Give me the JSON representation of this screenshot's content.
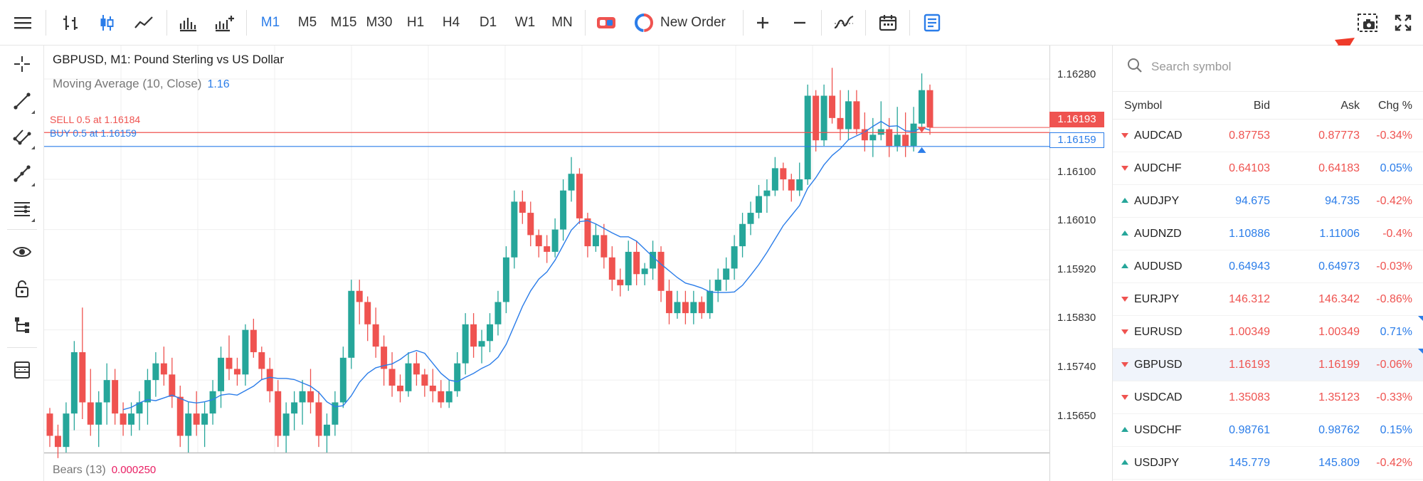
{
  "toolbar": {
    "timeframes": [
      "M1",
      "M5",
      "M15",
      "M30",
      "H1",
      "H4",
      "D1",
      "W1",
      "MN"
    ],
    "active_timeframe": "M1",
    "new_order_label": "New Order",
    "icons": [
      "menu-icon",
      "bar-chart-icon",
      "candlestick-icon",
      "line-chart-icon",
      "volume-icon",
      "indicators-icon",
      "one-click-icon",
      "new-order-icon",
      "zoom-in-icon",
      "zoom-out-icon",
      "indicator-wave-icon",
      "calendar-icon",
      "notes-icon",
      "screenshot-icon",
      "fullscreen-icon"
    ],
    "accent_color": "#2b7de9"
  },
  "left_tools": [
    "crosshair-icon",
    "trend-line-icon",
    "channel-icon",
    "fibonacci-icon",
    "horizontal-lines-icon",
    "eye-icon",
    "lock-icon",
    "objects-tree-icon",
    "templates-icon"
  ],
  "chart": {
    "title": "GBPUSD, M1: Pound Sterling vs US Dollar",
    "indicator": {
      "name": "Moving Average (10, Close)",
      "value": "1.16"
    },
    "sell_line": "SELL 0.5 at 1.16184",
    "buy_line": "BUY 0.5 at 1.16159",
    "subwindow": {
      "name": "Bears (13)",
      "value": "0.000250"
    },
    "price_labels": [
      "1.16280",
      "1.16100",
      "1.16010",
      "1.15920",
      "1.15830",
      "1.15740",
      "1.15650"
    ],
    "current_sell_tag": "1.16193",
    "buy_tag": "1.16159",
    "up_color": "#26a69a",
    "down_color": "#ef5350",
    "ma_color": "#2b7de9"
  },
  "chart_data": {
    "type": "candlestick",
    "title": "GBPUSD, M1: Pound Sterling vs US Dollar",
    "ylim": [
      1.1561,
      1.1634
    ],
    "candles": [
      [
        1.1568,
        1.1569,
        1.1562,
        1.1564
      ],
      [
        1.1564,
        1.1566,
        1.156,
        1.1562
      ],
      [
        1.1562,
        1.157,
        1.1561,
        1.1568
      ],
      [
        1.1568,
        1.1581,
        1.1565,
        1.1579
      ],
      [
        1.1579,
        1.1587,
        1.1567,
        1.157
      ],
      [
        1.157,
        1.1576,
        1.1564,
        1.1566
      ],
      [
        1.1566,
        1.1572,
        1.1562,
        1.157
      ],
      [
        1.157,
        1.1577,
        1.1566,
        1.1574
      ],
      [
        1.1574,
        1.1576,
        1.1566,
        1.1568
      ],
      [
        1.1568,
        1.157,
        1.1564,
        1.1566
      ],
      [
        1.1566,
        1.157,
        1.1564,
        1.1568
      ],
      [
        1.1568,
        1.1572,
        1.1565,
        1.157
      ],
      [
        1.157,
        1.1576,
        1.1566,
        1.1574
      ],
      [
        1.1574,
        1.1579,
        1.1571,
        1.1577
      ],
      [
        1.1577,
        1.158,
        1.1573,
        1.1575
      ],
      [
        1.1575,
        1.1578,
        1.1569,
        1.1571
      ],
      [
        1.1571,
        1.1573,
        1.1562,
        1.1564
      ],
      [
        1.1564,
        1.157,
        1.1561,
        1.1568
      ],
      [
        1.1568,
        1.1572,
        1.1564,
        1.1566
      ],
      [
        1.1566,
        1.157,
        1.1562,
        1.1568
      ],
      [
        1.1568,
        1.1574,
        1.1566,
        1.1572
      ],
      [
        1.1572,
        1.158,
        1.1569,
        1.1578
      ],
      [
        1.1578,
        1.1582,
        1.1574,
        1.1576
      ],
      [
        1.1576,
        1.1578,
        1.1573,
        1.1575
      ],
      [
        1.1575,
        1.1584,
        1.1573,
        1.1583
      ],
      [
        1.1583,
        1.1585,
        1.1578,
        1.1579
      ],
      [
        1.1579,
        1.158,
        1.1574,
        1.1576
      ],
      [
        1.1576,
        1.1578,
        1.157,
        1.1572
      ],
      [
        1.1572,
        1.1574,
        1.1562,
        1.1564
      ],
      [
        1.1564,
        1.157,
        1.1561,
        1.1568
      ],
      [
        1.1568,
        1.1572,
        1.1565,
        1.157
      ],
      [
        1.157,
        1.1574,
        1.1566,
        1.1572
      ],
      [
        1.1572,
        1.1576,
        1.1568,
        1.157
      ],
      [
        1.157,
        1.1572,
        1.1562,
        1.1564
      ],
      [
        1.1564,
        1.1568,
        1.1561,
        1.1566
      ],
      [
        1.1566,
        1.1572,
        1.1564,
        1.157
      ],
      [
        1.157,
        1.158,
        1.1569,
        1.1578
      ],
      [
        1.1578,
        1.1592,
        1.1576,
        1.159
      ],
      [
        1.159,
        1.1592,
        1.1584,
        1.1588
      ],
      [
        1.1588,
        1.1589,
        1.1581,
        1.1584
      ],
      [
        1.1584,
        1.1587,
        1.1578,
        1.158
      ],
      [
        1.158,
        1.1582,
        1.1573,
        1.1576
      ],
      [
        1.1576,
        1.1579,
        1.1571,
        1.1573
      ],
      [
        1.1573,
        1.1575,
        1.157,
        1.1572
      ],
      [
        1.1572,
        1.1579,
        1.1571,
        1.1577
      ],
      [
        1.1577,
        1.1579,
        1.1573,
        1.1575
      ],
      [
        1.1575,
        1.1576,
        1.1571,
        1.1573
      ],
      [
        1.1573,
        1.1576,
        1.157,
        1.1572
      ],
      [
        1.1572,
        1.1574,
        1.1569,
        1.157
      ],
      [
        1.157,
        1.1574,
        1.1569,
        1.1572
      ],
      [
        1.1572,
        1.1579,
        1.1571,
        1.1577
      ],
      [
        1.1577,
        1.1586,
        1.1575,
        1.1584
      ],
      [
        1.1584,
        1.1586,
        1.1578,
        1.158
      ],
      [
        1.158,
        1.1583,
        1.1577,
        1.1581
      ],
      [
        1.1581,
        1.1586,
        1.1579,
        1.1584
      ],
      [
        1.1584,
        1.159,
        1.1582,
        1.1588
      ],
      [
        1.1588,
        1.1598,
        1.1586,
        1.1596
      ],
      [
        1.1596,
        1.1608,
        1.1594,
        1.1606
      ],
      [
        1.1606,
        1.1608,
        1.1602,
        1.1604
      ],
      [
        1.1604,
        1.1606,
        1.1598,
        1.16
      ],
      [
        1.16,
        1.1601,
        1.1596,
        1.1598
      ],
      [
        1.1598,
        1.16,
        1.1595,
        1.1597
      ],
      [
        1.1597,
        1.1603,
        1.1596,
        1.1601
      ],
      [
        1.1601,
        1.161,
        1.1599,
        1.1608
      ],
      [
        1.1608,
        1.1614,
        1.1606,
        1.1611
      ],
      [
        1.1611,
        1.1612,
        1.1602,
        1.1603
      ],
      [
        1.1603,
        1.1604,
        1.1596,
        1.1598
      ],
      [
        1.1598,
        1.1602,
        1.1597,
        1.16
      ],
      [
        1.16,
        1.1602,
        1.1594,
        1.1596
      ],
      [
        1.1596,
        1.1598,
        1.159,
        1.1592
      ],
      [
        1.1592,
        1.1594,
        1.1589,
        1.1591
      ],
      [
        1.1591,
        1.1599,
        1.159,
        1.1597
      ],
      [
        1.1597,
        1.1599,
        1.1591,
        1.1593
      ],
      [
        1.1593,
        1.1595,
        1.1591,
        1.1594
      ],
      [
        1.1594,
        1.1599,
        1.1592,
        1.1597
      ],
      [
        1.1597,
        1.1598,
        1.1588,
        1.159
      ],
      [
        1.159,
        1.1592,
        1.1584,
        1.1586
      ],
      [
        1.1586,
        1.159,
        1.1585,
        1.1588
      ],
      [
        1.1588,
        1.159,
        1.1584,
        1.1586
      ],
      [
        1.1586,
        1.159,
        1.1584,
        1.1588
      ],
      [
        1.1588,
        1.1589,
        1.1585,
        1.1586
      ],
      [
        1.1586,
        1.1592,
        1.1585,
        1.159
      ],
      [
        1.159,
        1.1594,
        1.1588,
        1.1592
      ],
      [
        1.1592,
        1.1596,
        1.159,
        1.1594
      ],
      [
        1.1594,
        1.16,
        1.1592,
        1.1598
      ],
      [
        1.1598,
        1.1604,
        1.1596,
        1.1602
      ],
      [
        1.1602,
        1.1606,
        1.16,
        1.1604
      ],
      [
        1.1604,
        1.1609,
        1.1603,
        1.1607
      ],
      [
        1.1607,
        1.161,
        1.1604,
        1.1608
      ],
      [
        1.1608,
        1.1614,
        1.1607,
        1.1612
      ],
      [
        1.1612,
        1.1613,
        1.1608,
        1.161
      ],
      [
        1.161,
        1.1611,
        1.1606,
        1.1608
      ],
      [
        1.1608,
        1.1613,
        1.1607,
        1.161
      ],
      [
        1.161,
        1.1627,
        1.1609,
        1.1625
      ],
      [
        1.1625,
        1.1626,
        1.1615,
        1.1617
      ],
      [
        1.1617,
        1.1627,
        1.1616,
        1.1625
      ],
      [
        1.1625,
        1.163,
        1.162,
        1.1621
      ],
      [
        1.1621,
        1.1626,
        1.1617,
        1.1619
      ],
      [
        1.1619,
        1.1626,
        1.1617,
        1.1624
      ],
      [
        1.1624,
        1.1626,
        1.1618,
        1.1619
      ],
      [
        1.1619,
        1.1622,
        1.1615,
        1.1617
      ],
      [
        1.1617,
        1.1621,
        1.1614,
        1.1618
      ],
      [
        1.1618,
        1.1624,
        1.1617,
        1.1619
      ],
      [
        1.1619,
        1.1621,
        1.1614,
        1.1616
      ],
      [
        1.1616,
        1.1623,
        1.1615,
        1.1618
      ],
      [
        1.1618,
        1.1622,
        1.1614,
        1.1616
      ],
      [
        1.1616,
        1.1623,
        1.1615,
        1.162
      ],
      [
        1.162,
        1.1629,
        1.1619,
        1.1626
      ],
      [
        1.1626,
        1.1627,
        1.1618,
        1.16193
      ]
    ],
    "ma_period": 10
  },
  "market_watch": {
    "search_placeholder": "Search symbol",
    "headers": {
      "symbol": "Symbol",
      "bid": "Bid",
      "ask": "Ask",
      "chg": "Chg %"
    },
    "rows": [
      {
        "symbol": "AUDCAD",
        "dir": "down",
        "bid": "0.87753",
        "ask": "0.87773",
        "chg": "-0.34%",
        "color": "red",
        "marked": false
      },
      {
        "symbol": "AUDCHF",
        "dir": "down",
        "bid": "0.64103",
        "ask": "0.64183",
        "chg": "0.05%",
        "color": "red",
        "marked": false
      },
      {
        "symbol": "AUDJPY",
        "dir": "up",
        "bid": "94.675",
        "ask": "94.735",
        "chg": "-0.42%",
        "color": "blue",
        "marked": false
      },
      {
        "symbol": "AUDNZD",
        "dir": "up",
        "bid": "1.10886",
        "ask": "1.11006",
        "chg": "-0.4%",
        "color": "blue",
        "marked": false
      },
      {
        "symbol": "AUDUSD",
        "dir": "up",
        "bid": "0.64943",
        "ask": "0.64973",
        "chg": "-0.03%",
        "color": "blue",
        "marked": false
      },
      {
        "symbol": "EURJPY",
        "dir": "down",
        "bid": "146.312",
        "ask": "146.342",
        "chg": "-0.86%",
        "color": "red",
        "marked": false
      },
      {
        "symbol": "EURUSD",
        "dir": "down",
        "bid": "1.00349",
        "ask": "1.00349",
        "chg": "0.71%",
        "color": "red",
        "marked": true
      },
      {
        "symbol": "GBPUSD",
        "dir": "down",
        "bid": "1.16193",
        "ask": "1.16199",
        "chg": "-0.06%",
        "color": "red",
        "marked": true
      },
      {
        "symbol": "USDCAD",
        "dir": "down",
        "bid": "1.35083",
        "ask": "1.35123",
        "chg": "-0.33%",
        "color": "red",
        "marked": false
      },
      {
        "symbol": "USDCHF",
        "dir": "up",
        "bid": "0.98761",
        "ask": "0.98762",
        "chg": "0.15%",
        "color": "blue",
        "marked": false
      },
      {
        "symbol": "USDJPY",
        "dir": "up",
        "bid": "145.779",
        "ask": "145.809",
        "chg": "-0.42%",
        "color": "blue",
        "marked": false
      }
    ],
    "selected_symbol": "GBPUSD"
  }
}
